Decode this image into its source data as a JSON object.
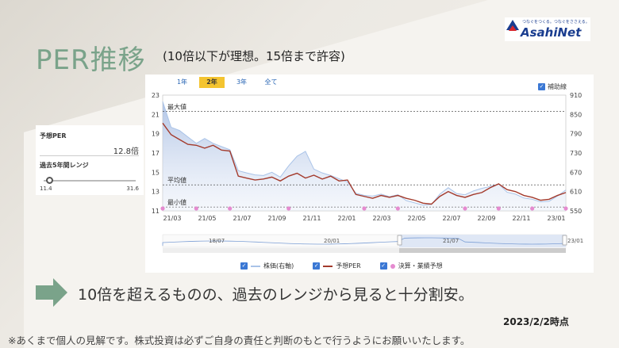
{
  "slide": {
    "title": "PER推移",
    "subtitle": "(10倍以下が理想。15倍まで許容)",
    "message": "10倍を超えるものの、過去のレンジから見ると十分割安。",
    "as_of": "2023/2/2時点",
    "note": "※あくまで個人の見解です。株式投資は必ずご自身の責任と判断のもとで行うようにお願いいたします。"
  },
  "logo": {
    "tagline": "つなぐをつくる。つなぐをささえる。",
    "name": "AsahiNet"
  },
  "side_panel": {
    "forecast_per_label": "予想PER",
    "forecast_per_value": "12.8倍",
    "range_label": "過去5年間レンジ",
    "range_min": "11.4",
    "range_max": "31.6",
    "current_position": 0.07
  },
  "chart_controls": {
    "tabs": [
      {
        "label": "1年",
        "active": false
      },
      {
        "label": "2年",
        "active": true
      },
      {
        "label": "3年",
        "active": false
      },
      {
        "label": "全て",
        "active": false
      }
    ],
    "aux_line_label": "補助線",
    "aux_line_checked": true,
    "legend": [
      {
        "label": "株価(右軸)",
        "color": "#a9c3e8",
        "marker": "line"
      },
      {
        "label": "予想PER",
        "color": "#a33a2c",
        "marker": "line"
      },
      {
        "label": "決算・業績予想",
        "color": "#e58bd0",
        "marker": "dot"
      }
    ],
    "navigator_labels": [
      "18/07",
      "20/01",
      "21/07",
      "23/01"
    ]
  },
  "chart_data": {
    "type": "line",
    "x_ticks": [
      "21/03",
      "21/05",
      "21/07",
      "21/09",
      "21/11",
      "22/01",
      "22/03",
      "22/05",
      "22/07",
      "22/09",
      "22/11",
      "23/01"
    ],
    "y_left_ticks": [
      11,
      13,
      15,
      17,
      19,
      21,
      23
    ],
    "y_left_lim": [
      11,
      23
    ],
    "y_right_ticks": [
      550,
      610,
      670,
      730,
      790,
      850,
      910
    ],
    "y_right_lim": [
      550,
      910
    ],
    "ref_lines": [
      {
        "label": "最大値",
        "value": 21.3
      },
      {
        "label": "平均値",
        "value": 13.7
      },
      {
        "label": "最小値",
        "value": 11.4
      }
    ],
    "series": [
      {
        "name": "予想PER",
        "axis": "left",
        "values": [
          20.1,
          18.9,
          18.4,
          17.9,
          17.8,
          17.5,
          17.8,
          17.3,
          17.2,
          14.6,
          14.4,
          14.2,
          14.3,
          14.5,
          14.1,
          14.6,
          14.9,
          14.4,
          14.7,
          14.3,
          14.6,
          14.1,
          14.2,
          12.7,
          12.5,
          12.3,
          12.6,
          12.4,
          12.6,
          12.3,
          12.1,
          11.8,
          11.7,
          12.5,
          13.0,
          12.6,
          12.4,
          12.7,
          12.9,
          13.4,
          13.8,
          13.2,
          13.0,
          12.6,
          12.4,
          12.1,
          12.2,
          12.6,
          12.9
        ]
      },
      {
        "name": "株価(右軸)",
        "axis": "right",
        "values": [
          890,
          810,
          800,
          780,
          760,
          775,
          760,
          750,
          740,
          675,
          668,
          662,
          660,
          670,
          655,
          690,
          720,
          735,
          680,
          668,
          660,
          650,
          640,
          605,
          598,
          596,
          602,
          594,
          600,
          582,
          575,
          568,
          570,
          602,
          622,
          604,
          600,
          612,
          620,
          626,
          634,
          608,
          602,
          590,
          586,
          578,
          580,
          596,
          615
        ]
      }
    ],
    "event_markers_x": [
      0,
      4,
      8,
      15,
      24,
      28,
      36,
      40,
      44,
      48
    ]
  }
}
